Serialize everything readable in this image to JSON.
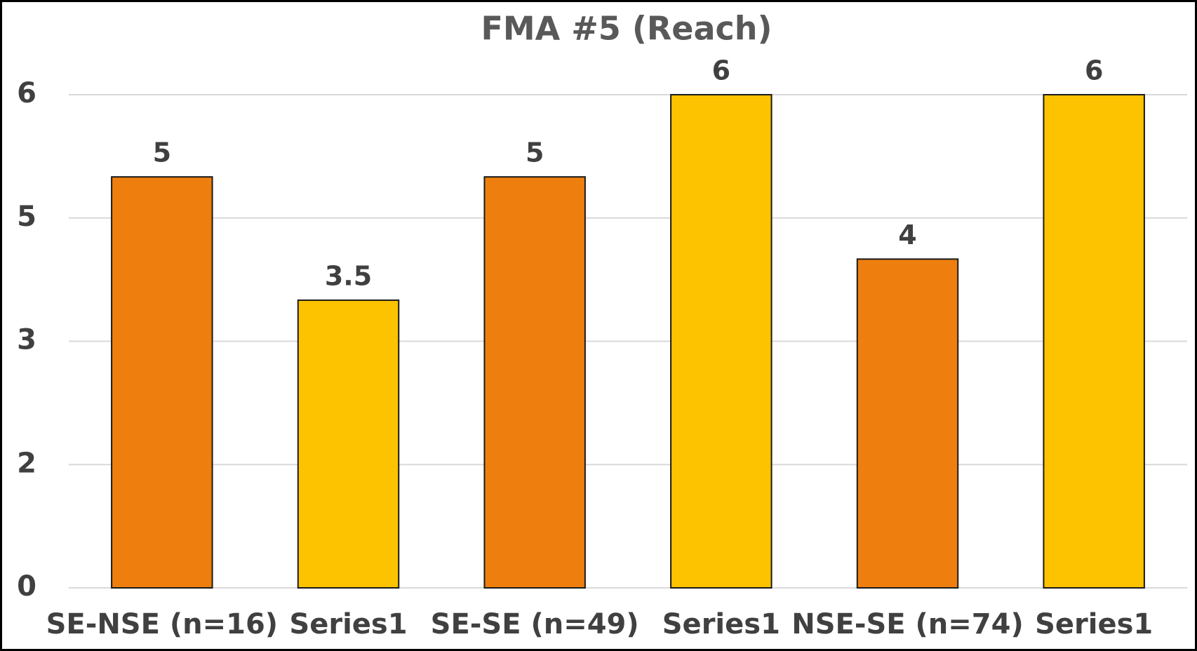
{
  "chart_data": {
    "type": "bar",
    "title": "FMA #5 (Reach)",
    "categories": [
      "SE-NSE (n=16)",
      "Series1",
      "SE-SE (n=49)",
      "Series1",
      "NSE-SE (n=74)",
      "Series1"
    ],
    "values": [
      5,
      3.5,
      5,
      6,
      4,
      6
    ],
    "colors": [
      "#ee7f0e",
      "#fdc300",
      "#ee7f0e",
      "#fdc300",
      "#ee7f0e",
      "#fdc300"
    ],
    "ylim": [
      0,
      6
    ],
    "yticks": [
      0,
      {
        "value": 1.5,
        "label": "2"
      },
      3,
      {
        "value": 4.5,
        "label": "5"
      },
      6
    ],
    "grid": true
  }
}
